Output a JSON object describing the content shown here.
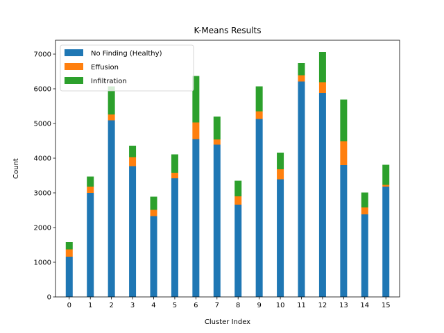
{
  "chart_data": {
    "type": "bar",
    "stacked": true,
    "title": "K-Means Results",
    "xlabel": "Cluster Index",
    "ylabel": "Count",
    "categories": [
      "0",
      "1",
      "2",
      "3",
      "4",
      "5",
      "6",
      "7",
      "8",
      "9",
      "10",
      "11",
      "12",
      "13",
      "14",
      "15"
    ],
    "ylim": [
      0,
      7400
    ],
    "yticks": [
      0,
      1000,
      2000,
      3000,
      4000,
      5000,
      6000,
      7000
    ],
    "grid": false,
    "legend_position": "top-left",
    "series": [
      {
        "name": "No Finding (Healthy)",
        "color": "#1f77b4",
        "values": [
          1160,
          3000,
          5090,
          3770,
          2330,
          3420,
          4550,
          4390,
          2660,
          5130,
          3390,
          6210,
          5880,
          3800,
          2380,
          3180
        ]
      },
      {
        "name": "Effusion",
        "color": "#ff7f0e",
        "values": [
          210,
          180,
          170,
          260,
          180,
          160,
          480,
          150,
          240,
          220,
          290,
          180,
          310,
          690,
          200,
          50
        ]
      },
      {
        "name": "Infiltration",
        "color": "#2ca02c",
        "values": [
          210,
          290,
          810,
          330,
          380,
          530,
          1340,
          660,
          450,
          720,
          480,
          350,
          870,
          1200,
          430,
          580
        ]
      }
    ]
  }
}
